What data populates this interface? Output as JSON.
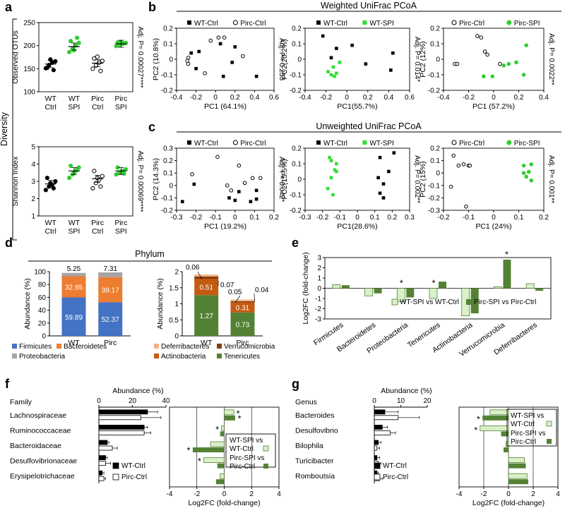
{
  "figure": {
    "panel_labels": [
      "a",
      "b",
      "c",
      "d",
      "e",
      "f",
      "g"
    ],
    "diversity_label": "Diversity",
    "weighted_title": "Weighted UniFrac PCoA",
    "unweighted_title": "Unweighted UniFrac PCoA",
    "phylum_title": "Phylum"
  },
  "chart_data": [
    {
      "id": "a1",
      "type": "scatter",
      "ylabel": "Observed OTUs",
      "ylim": [
        100,
        250
      ],
      "yticks": [
        "100",
        "150",
        "200",
        "250"
      ],
      "categories": [
        "WT Ctrl",
        "WT SPI",
        "Pirc Ctrl",
        "Pirc SPI"
      ],
      "cat_lines": [
        [
          "WT",
          "Ctrl"
        ],
        [
          "WT",
          "SPI"
        ],
        [
          "Pirc",
          "Ctrl"
        ],
        [
          "Pirc",
          "SPI"
        ]
      ],
      "colors": [
        "#000000",
        "#33cc33",
        "#000000",
        "#33cc33"
      ],
      "filled": [
        true,
        true,
        false,
        true
      ],
      "points": [
        [
          151,
          158,
          163,
          166,
          152,
          170,
          147
        ],
        [
          186,
          193,
          200,
          206,
          210,
          190,
          217
        ],
        [
          150,
          157,
          163,
          167,
          172,
          176,
          145
        ],
        [
          199,
          202,
          204,
          206,
          207,
          208,
          205
        ]
      ],
      "means": [
        160,
        198,
        162,
        204
      ],
      "annotation": "Adj. P= 0.00027****"
    },
    {
      "id": "a2",
      "type": "scatter",
      "ylabel": "Shannon Index",
      "ylim": [
        1,
        5
      ],
      "yticks": [
        "1",
        "2",
        "3",
        "4",
        "5"
      ],
      "categories": [
        "WT Ctrl",
        "WT SPI",
        "Pirc Ctrl",
        "Pirc SPI"
      ],
      "cat_lines": [
        [
          "WT",
          "Ctrl"
        ],
        [
          "WT",
          "SPI"
        ],
        [
          "Pirc",
          "Ctrl"
        ],
        [
          "Pirc",
          "SPI"
        ]
      ],
      "colors": [
        "#000000",
        "#33cc33",
        "#000000",
        "#33cc33"
      ],
      "filled": [
        true,
        true,
        false,
        true
      ],
      "points": [
        [
          2.5,
          2.7,
          2.8,
          3.0,
          3.2,
          2.9,
          2.6
        ],
        [
          3.2,
          3.4,
          3.6,
          3.8,
          3.9,
          3.5,
          3.7
        ],
        [
          2.6,
          2.9,
          3.1,
          3.3,
          3.6,
          3.2,
          2.7
        ],
        [
          3.4,
          3.5,
          3.6,
          3.7,
          3.8,
          3.55,
          3.45
        ]
      ],
      "means": [
        2.85,
        3.6,
        3.15,
        3.6
      ],
      "annotation": "Adj. P= 0.00069****"
    },
    {
      "id": "b1",
      "type": "scatter",
      "xlabel": "PC1 (64.1%)",
      "ylabel": "PC2 (10.8%)",
      "xlim": [
        -0.4,
        0.6
      ],
      "ylim": [
        -0.2,
        0.2
      ],
      "xticks": [
        "-0.4",
        "-0.2",
        "0",
        "0.2",
        "0.4",
        "0.6"
      ],
      "yticks": [
        "-0.2",
        "-0.1",
        "0",
        "0.1",
        "0.2"
      ],
      "annotation": "Adj. P= 0.253",
      "series": [
        {
          "name": "WT-Ctrl",
          "color": "#000000",
          "marker": "square",
          "x": [
            -0.25,
            -0.2,
            0.05,
            0.2,
            0.08,
            0.42,
            0.17,
            -0.17
          ],
          "y": [
            0.04,
            -0.06,
            0.1,
            0.08,
            -0.11,
            -0.11,
            -0.02,
            0.05
          ]
        },
        {
          "name": "Pirc-Ctrl",
          "color": "#000000",
          "marker": "circle",
          "x": [
            -0.28,
            -0.29,
            -0.28,
            -0.05,
            0.03,
            0.09,
            0.28,
            -0.11
          ],
          "y": [
            0.01,
            -0.01,
            -0.03,
            0.12,
            0.14,
            0.14,
            0.02,
            -0.09
          ]
        }
      ]
    },
    {
      "id": "b2",
      "type": "scatter",
      "xlabel": "PC1(55.7%)",
      "ylabel": "PC2(20.2%)",
      "xlim": [
        -0.4,
        0.6
      ],
      "ylim": [
        -0.2,
        0.2
      ],
      "xticks": [
        "-0.4",
        "-0.2",
        "0",
        "0.2",
        "0.4",
        "0.6"
      ],
      "yticks": [
        "-0.2",
        "-0.1",
        "0",
        "0.1",
        "0.2"
      ],
      "annotation": "Adj. P= 0.014*",
      "series": [
        {
          "name": "WT-Ctrl",
          "color": "#000000",
          "marker": "square",
          "x": [
            -0.23,
            -0.1,
            0.05,
            -0.15,
            0.18,
            0.42,
            0.44
          ],
          "y": [
            0.15,
            0.07,
            0.09,
            0.01,
            -0.03,
            -0.07,
            0.04
          ]
        },
        {
          "name": "WT-SPI",
          "color": "#33dd33",
          "marker": "square",
          "x": [
            -0.18,
            -0.15,
            -0.12,
            -0.1,
            -0.07,
            -0.13
          ],
          "y": [
            -0.08,
            -0.1,
            -0.11,
            -0.09,
            -0.02,
            -0.05
          ]
        }
      ]
    },
    {
      "id": "b3",
      "type": "scatter",
      "xlabel": "PC1 (57.2%)",
      "ylabel": "PC2 (12%)",
      "xlim": [
        -0.4,
        0.4
      ],
      "ylim": [
        -0.2,
        0.2
      ],
      "xticks": [
        "-0.4",
        "-0.2",
        "0",
        "0.2",
        "0.4"
      ],
      "yticks": [
        "-0.2",
        "-0.1",
        "0",
        "0.1",
        "0.2"
      ],
      "annotation": "Adj. P= 0.0022**",
      "series": [
        {
          "name": "Pirc-Ctrl",
          "color": "#000000",
          "marker": "circle",
          "x": [
            -0.31,
            -0.29,
            -0.13,
            -0.1,
            0.05,
            -0.07,
            -0.05
          ],
          "y": [
            -0.03,
            -0.03,
            0.15,
            0.14,
            -0.03,
            0.05,
            0.03
          ]
        },
        {
          "name": "Pirc-SPI",
          "color": "#33cc33",
          "marker": "circle",
          "x": [
            -0.08,
            -0.01,
            0.08,
            0.18,
            0.24,
            0.26,
            0.12
          ],
          "y": [
            -0.11,
            -0.11,
            -0.04,
            -0.02,
            -0.1,
            0.09,
            -0.03
          ]
        }
      ]
    },
    {
      "id": "c1",
      "type": "scatter",
      "xlabel": "PC1 (19.2%)",
      "ylabel": "PC2 (14.3%)",
      "xlim": [
        -0.3,
        0.2
      ],
      "ylim": [
        -0.2,
        0.3
      ],
      "xticks": [
        "-0.3",
        "-0.2",
        "-0.1",
        "0",
        "0.1",
        "0.2"
      ],
      "yticks": [
        "-0.2",
        "-0.1",
        "0",
        "0.1",
        "0.2",
        "0.3"
      ],
      "annotation": "Adj. P= 0.042*",
      "series": [
        {
          "name": "WT-Ctrl",
          "color": "#000000",
          "marker": "square",
          "x": [
            -0.27,
            -0.21,
            -0.03,
            0.02,
            0.08,
            0.11,
            0.11,
            0.0
          ],
          "y": [
            -0.13,
            0.01,
            -0.1,
            -0.05,
            -0.13,
            -0.04,
            -0.11,
            -0.12
          ]
        },
        {
          "name": "Pirc-Ctrl",
          "color": "#000000",
          "marker": "circle",
          "x": [
            -0.22,
            -0.09,
            -0.04,
            -0.02,
            0.05,
            0.09,
            0.13,
            0.02
          ],
          "y": [
            0.09,
            0.23,
            0.0,
            -0.04,
            0.02,
            0.06,
            0.06,
            0.16
          ]
        }
      ]
    },
    {
      "id": "c2",
      "type": "scatter",
      "xlabel": "PC1(28.6%)",
      "ylabel": "PC2(15.5%)",
      "xlim": [
        -0.3,
        0.3
      ],
      "ylim": [
        -0.2,
        0.2
      ],
      "xticks": [
        "-0.3",
        "-0.2",
        "-0.1",
        "0",
        "0.1",
        "0.2",
        "0.3"
      ],
      "yticks": [
        "-0.2",
        "-0.1",
        "0",
        "0.1",
        "0.2"
      ],
      "annotation": "Adj. P= 0.002**",
      "series": [
        {
          "name": "WT-Ctrl",
          "color": "#000000",
          "marker": "square",
          "x": [
            0.13,
            0.12,
            0.15,
            0.13,
            0.15,
            0.18,
            0.21
          ],
          "y": [
            0.14,
            0.01,
            -0.03,
            -0.09,
            -0.12,
            0.05,
            0.17
          ]
        },
        {
          "name": "WT-SPI",
          "color": "#33dd33",
          "marker": "square",
          "x": [
            -0.16,
            -0.15,
            -0.13,
            -0.12,
            -0.15,
            -0.17,
            -0.14,
            -0.12
          ],
          "y": [
            0.14,
            0.12,
            0.06,
            0.05,
            0.01,
            -0.06,
            -0.1,
            0.1
          ]
        }
      ]
    },
    {
      "id": "c3",
      "type": "scatter",
      "xlabel": "PC1 (24%)",
      "ylabel": "PC2 (15%)",
      "xlim": [
        -0.2,
        0.2
      ],
      "ylim": [
        -0.3,
        0.2
      ],
      "xticks": [
        "-0.2",
        "-0.1",
        "0",
        "0.1",
        "0.2"
      ],
      "yticks": [
        "-0.3",
        "-0.2",
        "-0.1",
        "0",
        "0.1",
        "0.2"
      ],
      "annotation": "Adj. P= 0.001**",
      "series": [
        {
          "name": "Pirc-Ctrl",
          "color": "#000000",
          "marker": "circle",
          "x": [
            -0.16,
            -0.14,
            -0.12,
            -0.1,
            -0.095,
            -0.17,
            -0.11
          ],
          "y": [
            0.14,
            0.06,
            0.07,
            0.06,
            0.06,
            -0.11,
            -0.27
          ]
        },
        {
          "name": "Pirc-SPI",
          "color": "#33cc33",
          "marker": "circle",
          "x": [
            0.12,
            0.14,
            0.15,
            0.13,
            0.12,
            0.15
          ],
          "y": [
            0.06,
            0.01,
            -0.06,
            -0.03,
            0.0,
            0.07
          ]
        }
      ]
    },
    {
      "id": "d1",
      "type": "bar",
      "stacked": true,
      "categories": [
        "WT",
        "Pirc"
      ],
      "ylabel": "Abundance (%)",
      "ylim": [
        0,
        100
      ],
      "yticks": [
        "0",
        "20",
        "40",
        "60",
        "80",
        "100"
      ],
      "series": [
        {
          "name": "Firmicutes",
          "color": "#4472c4",
          "values": [
            59.89,
            52.37
          ],
          "labels": [
            "59.89",
            "52.37"
          ]
        },
        {
          "name": "Bacteroidetes",
          "color": "#ed7d31",
          "values": [
            32.95,
            39.17
          ],
          "labels": [
            "32.95",
            "39.17"
          ]
        },
        {
          "name": "Proteobacteria",
          "color": "#a5a5a5",
          "values": [
            5.25,
            7.31
          ],
          "labels": [
            "5.25",
            "7.31"
          ]
        }
      ]
    },
    {
      "id": "d2",
      "type": "bar",
      "stacked": true,
      "categories": [
        "WT",
        "Pirc"
      ],
      "ylabel": "Abundance (%)",
      "ylim": [
        0,
        2
      ],
      "yticks": [
        "0",
        "0.5",
        "1",
        "1.5",
        "2"
      ],
      "series": [
        {
          "name": "Tenericutes",
          "color": "#548235",
          "values": [
            1.27,
            0.73
          ],
          "labels": [
            "1.27",
            "0.73"
          ]
        },
        {
          "name": "Actinobacteria",
          "color": "#c55a11",
          "values": [
            0.51,
            0.31
          ],
          "labels": [
            "0.51",
            "0.31"
          ]
        },
        {
          "name": "Verrucomicrobia",
          "color": "#843c0c",
          "values": [
            0.07,
            0.04
          ],
          "labels": [
            "0.07",
            "0.04"
          ]
        },
        {
          "name": "Deferribacteres",
          "color": "#f4b183",
          "values": [
            0.06,
            0.05
          ],
          "labels": [
            "0.06",
            "0.05"
          ]
        }
      ],
      "legend": [
        "Deferribacteres",
        "Verrucomicrobia",
        "Actinobacteria",
        "Tenericutes"
      ]
    },
    {
      "id": "e",
      "type": "bar",
      "ylabel": "Log2FC (fold-change)",
      "ylim": [
        -3,
        3
      ],
      "yticks": [
        "-3",
        "-2",
        "-1",
        "0",
        "1",
        "2",
        "3"
      ],
      "categories": [
        "Firmicutes",
        "Bacteroidetes",
        "Proteobacteria",
        "Tenericutes",
        "Actinobacteria",
        "Verrucomicrobia",
        "Deferribacteres"
      ],
      "series": [
        {
          "name": "WT-SPI vs WT-Ctrl",
          "color": "#d9f0c8",
          "values": [
            0.35,
            -0.75,
            -1.3,
            -1.0,
            -2.7,
            0.15,
            0.45
          ]
        },
        {
          "name": "Pirc-SPI vs Pirc-Ctrl",
          "color": "#548235",
          "values": [
            0.3,
            -0.5,
            -0.9,
            0.65,
            -2.45,
            2.8,
            -0.25
          ]
        }
      ],
      "significance": [
        [
          "Proteobacteria",
          "WT-SPI vs WT-Ctrl"
        ],
        [
          "Tenericutes",
          "WT-SPI vs WT-Ctrl"
        ],
        [
          "Verrucomicrobia",
          "Pirc-SPI vs Pirc-Ctrl"
        ]
      ]
    },
    {
      "id": "f",
      "type": "bar",
      "orientation": "horizontal",
      "title": "Family",
      "xlabel": "Abundance (%)",
      "xlim": [
        0,
        40
      ],
      "xticks": [
        "0",
        "20",
        "40"
      ],
      "categories": [
        "Lachnospiraceae",
        "Ruminococcaceae",
        "Bacteroidaceae",
        "Desulfovibrionaceae",
        "Erysipelotrichaceae"
      ],
      "series": [
        {
          "name": "WT-Ctrl",
          "color": "#000000",
          "values": [
            29,
            27,
            5,
            4,
            2
          ],
          "err": [
            6,
            2,
            1,
            1,
            1
          ]
        },
        {
          "name": "Pirc-Ctrl",
          "color": "#ffffff",
          "values": [
            25,
            27,
            8,
            4,
            3
          ],
          "err": [
            12,
            4,
            3,
            3,
            1
          ]
        }
      ]
    },
    {
      "id": "f2",
      "type": "bar",
      "orientation": "horizontal",
      "xlabel": "Log2FC (fold-change)",
      "xlim": [
        -4,
        4
      ],
      "xticks": [
        "-4",
        "-2",
        "0",
        "2",
        "4"
      ],
      "categories": [
        "Lachnospiraceae",
        "Ruminococcaceae",
        "Bacteroidaceae",
        "Desulfovibrionaceae",
        "Erysipelotrichaceae"
      ],
      "series": [
        {
          "name": "WT-SPI vs WT-Ctrl",
          "color": "#d9f0c8",
          "values": [
            0.7,
            -0.2,
            -1.0,
            -1.5,
            -0.3
          ]
        },
        {
          "name": "Pirc-SPI vs Pirc-Ctrl",
          "color": "#548235",
          "values": [
            0.8,
            -0.3,
            -2.3,
            -0.5,
            -0.6
          ]
        }
      ],
      "significance": [
        "*",
        "*",
        "*",
        "*",
        "*"
      ]
    },
    {
      "id": "g",
      "type": "bar",
      "orientation": "horizontal",
      "title": "Genus",
      "xlabel": "Abundance (%)",
      "xlim": [
        0,
        20
      ],
      "xticks": [
        "0",
        "10",
        "20"
      ],
      "categories": [
        "Bacteroides",
        "Desulfovibrio",
        "Bilophila",
        "Turicibacter",
        "Romboutsia"
      ],
      "series": [
        {
          "name": "WT-Ctrl",
          "color": "#000000",
          "values": [
            4,
            3,
            1.5,
            1,
            1
          ],
          "err": [
            5,
            2,
            1,
            1,
            0.5
          ]
        },
        {
          "name": "Pirc-Ctrl",
          "color": "#ffffff",
          "values": [
            9,
            6,
            1,
            1.5,
            2
          ],
          "err": [
            8,
            2,
            1,
            1,
            1
          ]
        }
      ]
    },
    {
      "id": "g2",
      "type": "bar",
      "orientation": "horizontal",
      "xlabel": "Log2FC (fold-change)",
      "xlim": [
        -4,
        4
      ],
      "xticks": [
        "-4",
        "-2",
        "0",
        "2",
        "4"
      ],
      "categories": [
        "Bacteroides",
        "Desulfovibrio",
        "Bilophila",
        "Turicibacter",
        "Romboutsia"
      ],
      "series": [
        {
          "name": "WT-SPI vs WT-Ctrl",
          "color": "#d9f0c8",
          "values": [
            -1.5,
            -2.3,
            -0.2,
            1.3,
            1.5
          ],
          "labels": [
            "WT-SPI vs",
            "WT-Ctrl"
          ]
        },
        {
          "name": "Pirc-SPI vs Pirc-Ctrl",
          "color": "#548235",
          "values": [
            -2.1,
            -0.6,
            -0.4,
            1.4,
            1.6
          ],
          "labels": [
            "Pirc-SPI vs",
            "Pirc-Ctrl"
          ]
        }
      ],
      "significance": [
        "*",
        "*"
      ]
    }
  ]
}
